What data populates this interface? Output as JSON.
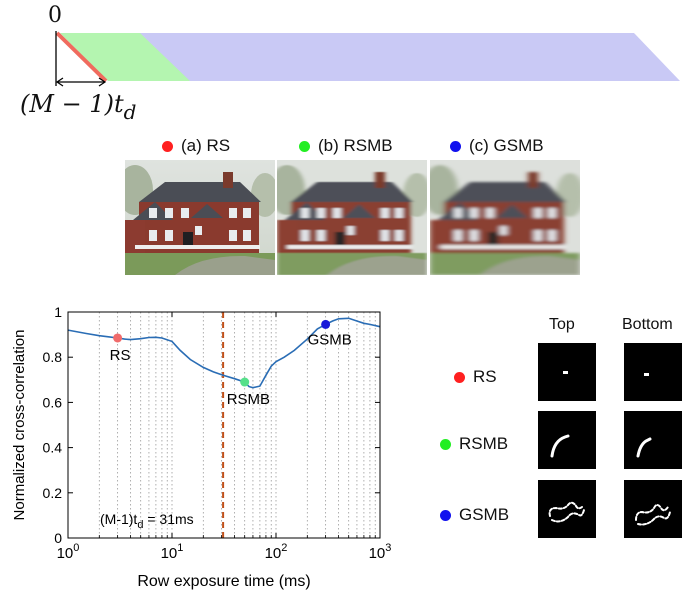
{
  "timing_diagram": {
    "zero_label": "0",
    "duration_label_main": "(M − 1)t",
    "duration_label_sub": "d",
    "colors": {
      "rs": "#f06b5e",
      "rsmb": "#b4f5b0",
      "gsmb": "#c9c9f5"
    }
  },
  "methods": [
    {
      "label": "(a) RS",
      "color": "#ff2020"
    },
    {
      "label": "(b) RSMB",
      "color": "#22ee22"
    },
    {
      "label": "(c) GSMB",
      "color": "#1111ee"
    }
  ],
  "psf_panel": {
    "col_top": "Top",
    "col_bottom": "Bottom",
    "rows": [
      {
        "label": "RS",
        "color": "#ff2020",
        "icon": "psf-dot"
      },
      {
        "label": "RSMB",
        "color": "#22ee22",
        "icon": "psf-arc"
      },
      {
        "label": "GSMB",
        "color": "#1111ee",
        "icon": "psf-squiggle"
      }
    ]
  },
  "chart_data": {
    "type": "line",
    "xlabel": "Row exposure time (ms)",
    "ylabel": "Normalized cross-correlation",
    "xscale": "log",
    "xlim": [
      1,
      1000
    ],
    "ylim": [
      0,
      1
    ],
    "xticks": [
      {
        "value": 1,
        "base": "10",
        "exp": "0"
      },
      {
        "value": 10,
        "base": "10",
        "exp": "1"
      },
      {
        "value": 100,
        "base": "10",
        "exp": "2"
      },
      {
        "value": 1000,
        "base": "10",
        "exp": "3"
      }
    ],
    "yticks": [
      0,
      0.2,
      0.4,
      0.6,
      0.8,
      1
    ],
    "ytick_labels": [
      "0",
      "0.2",
      "0.4",
      "0.6",
      "0.8",
      "1"
    ],
    "grid": "vertical-dotted",
    "line_color": "#2a6db5",
    "x": [
      1,
      1.5,
      2,
      2.5,
      3,
      3.5,
      4,
      5,
      6,
      7,
      8,
      10,
      12,
      15,
      20,
      25,
      31,
      40,
      50,
      55,
      60,
      70,
      80,
      90,
      100,
      120,
      150,
      200,
      250,
      300,
      350,
      400,
      500,
      600,
      700,
      800,
      1000
    ],
    "y": [
      0.92,
      0.905,
      0.895,
      0.89,
      0.885,
      0.88,
      0.878,
      0.882,
      0.887,
      0.888,
      0.885,
      0.87,
      0.83,
      0.79,
      0.755,
      0.735,
      0.72,
      0.705,
      0.69,
      0.67,
      0.665,
      0.672,
      0.72,
      0.76,
      0.78,
      0.8,
      0.83,
      0.88,
      0.925,
      0.945,
      0.96,
      0.97,
      0.972,
      0.96,
      0.95,
      0.945,
      0.935
    ],
    "vline": {
      "x": 31,
      "color": "#c0501a",
      "label_main": "(M-1)t",
      "label_sub": "d",
      "label_rest": " = 31ms"
    },
    "markers": [
      {
        "name": "RS",
        "x": 3,
        "y": 0.885,
        "color": "#f06b6b"
      },
      {
        "name": "RSMB",
        "x": 50,
        "y": 0.69,
        "color": "#55e08a"
      },
      {
        "name": "GSMB",
        "x": 300,
        "y": 0.945,
        "color": "#1a1ad8"
      }
    ]
  }
}
